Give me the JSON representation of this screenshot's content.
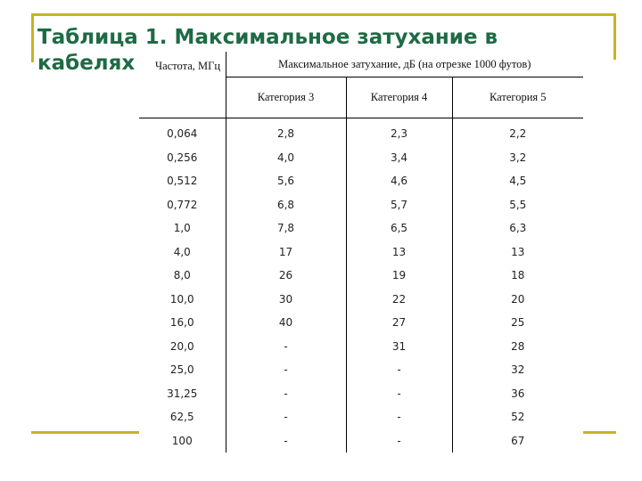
{
  "slide": {
    "title": "Таблица 1. Максимальное затухание в кабелях"
  },
  "table": {
    "header": {
      "frequency_col": "Частота, МГц",
      "span_header": "Максимальное затухание, дБ (на отрезке 1000 футов)",
      "categories": [
        "Категория 3",
        "Категория 4",
        "Категория 5"
      ]
    },
    "rows": [
      [
        "0,064",
        "2,8",
        "2,3",
        "2,2"
      ],
      [
        "0,256",
        "4,0",
        "3,4",
        "3,2"
      ],
      [
        "0,512",
        "5,6",
        "4,6",
        "4,5"
      ],
      [
        "0,772",
        "6,8",
        "5,7",
        "5,5"
      ],
      [
        "1,0",
        "7,8",
        "6,5",
        "6,3"
      ],
      [
        "4,0",
        "17",
        "13",
        "13"
      ],
      [
        "8,0",
        "26",
        "19",
        "18"
      ],
      [
        "10,0",
        "30",
        "22",
        "20"
      ],
      [
        "16,0",
        "40",
        "27",
        "25"
      ],
      [
        "20,0",
        "-",
        "31",
        "28"
      ],
      [
        "25,0",
        "-",
        "-",
        "32"
      ],
      [
        "31,25",
        "-",
        "-",
        "36"
      ],
      [
        "62,5",
        "-",
        "-",
        "52"
      ],
      [
        "100",
        "-",
        "-",
        "67"
      ]
    ]
  },
  "colors": {
    "title": "#1e6b44",
    "accent_bars": "#c8b321"
  }
}
